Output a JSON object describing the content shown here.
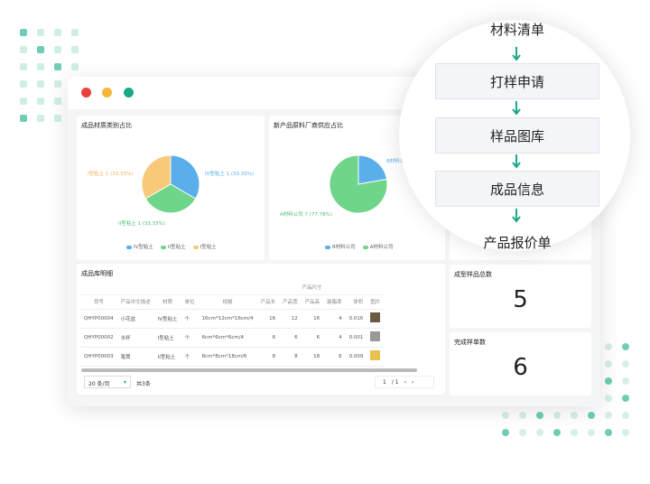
{
  "window": {
    "controls": [
      "close",
      "minimize",
      "maximize"
    ],
    "colors": {
      "close": "#e8413c",
      "minimize": "#f5b73b",
      "maximize": "#1aa88a"
    }
  },
  "chart1": {
    "title": "成品材质类别占比",
    "chart_data": {
      "type": "pie",
      "categories": [
        "IV型粘土",
        "II型粘土",
        "I型粘土"
      ],
      "values": [
        1,
        1,
        1
      ],
      "labels": [
        "IV型粘土 1 (33.33%)",
        "II型粘土 1 (33.33%)",
        "I型粘土 1 (33.33%)"
      ],
      "colors": [
        "#5aaeea",
        "#6fd58a",
        "#f7c978"
      ],
      "legend": "bottom"
    }
  },
  "chart2": {
    "title": "新产品原料厂商供应占比",
    "chart_data": {
      "type": "pie",
      "categories": [
        "B材料公司",
        "A材料公司"
      ],
      "values": [
        2,
        7
      ],
      "labels": [
        "B材料公",
        "A材料公司 7 (77.78%)"
      ],
      "colors": [
        "#5aaeea",
        "#6fd58a"
      ],
      "legend": "bottom"
    }
  },
  "table": {
    "title": "成品库明细",
    "group_header": "产品尺寸",
    "headers": [
      "货号",
      "产品中文描述",
      "材质",
      "单位",
      "规格",
      "产品长",
      "产品宽",
      "产品高",
      "装箱率",
      "体积",
      "图片"
    ],
    "rows": [
      [
        "QHYP00004",
        "小花盆",
        "IV型粘土",
        "个",
        "16cm*12cm*16cm/4",
        "16",
        "12",
        "16",
        "4",
        "0.016"
      ],
      [
        "QHYP00002",
        "水杯",
        "I型粘土",
        "个",
        "6cm*6cm*6cm/4",
        "6",
        "6",
        "6",
        "4",
        "0.001"
      ],
      [
        "QHYP00003",
        "笔筒",
        "II型粘土",
        "个",
        "8cm*8cm*18cm/6",
        "8",
        "8",
        "18",
        "6",
        "0.009"
      ]
    ],
    "page_size": "20 条/页",
    "total": "共3条",
    "page": "1",
    "page_total": "/ 1"
  },
  "stats": [
    {
      "label": "成型样品总数",
      "value": "5"
    },
    {
      "label": "完成样单数",
      "value": "6"
    }
  ],
  "flow": [
    "材料清单",
    "打样申请",
    "样品图库",
    "成品信息",
    "产品报价单"
  ]
}
